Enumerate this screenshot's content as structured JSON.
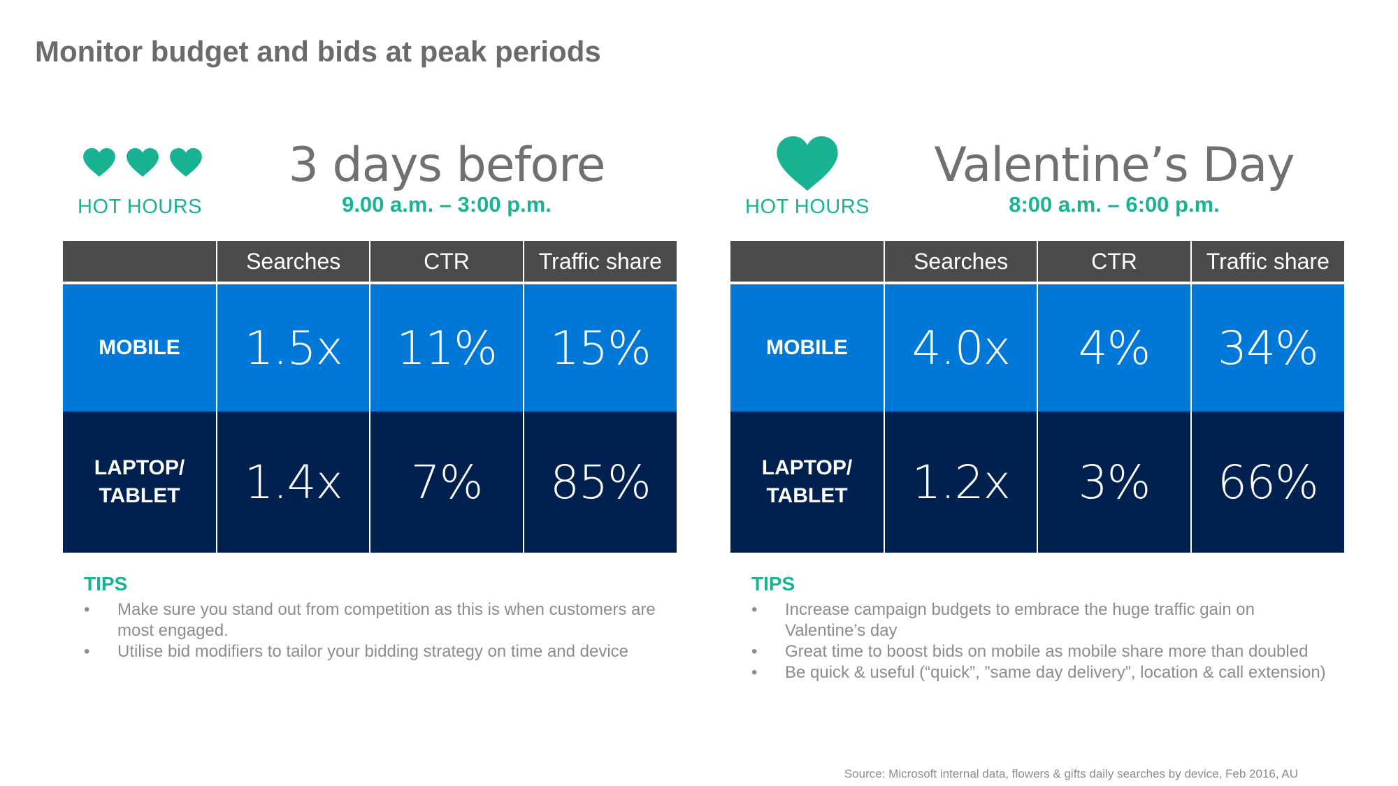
{
  "page": {
    "title": "Monitor budget and bids at peak periods",
    "source": "Source: Microsoft internal data, flowers & gifts daily searches by device, Feb 2016, AU"
  },
  "colors": {
    "heart": "#19b394",
    "accent_text": "#19b394",
    "header_row": "#4b4b4b",
    "mobile_row": "#0078d7",
    "laptop_row": "#002050",
    "title_text": "#6b6b6b"
  },
  "panels": [
    {
      "icon": "three-hearts-icon",
      "hot_hours_label": "HOT HOURS",
      "heading": "3 days before",
      "hours": "9.00 a.m. – 3:00 p.m.",
      "columns": [
        "Searches",
        "CTR",
        "Traffic share"
      ],
      "rows": [
        {
          "label_line1": "MOBILE",
          "label_line2": "",
          "values": [
            "1.5x",
            "11%",
            "15%"
          ]
        },
        {
          "label_line1": "LAPTOP/",
          "label_line2": "TABLET",
          "values": [
            "1.4x",
            "7%",
            "85%"
          ]
        }
      ],
      "tips_title": "TIPS",
      "tips": [
        "Make sure you stand out from competition as this is when customers are most engaged.",
        "Utilise bid modifiers to tailor your bidding strategy on time and device"
      ]
    },
    {
      "icon": "heart-icon",
      "hot_hours_label": "HOT HOURS",
      "heading": "Valentine’s Day",
      "hours": "8:00 a.m. – 6:00 p.m.",
      "columns": [
        "Searches",
        "CTR",
        "Traffic share"
      ],
      "rows": [
        {
          "label_line1": "MOBILE",
          "label_line2": "",
          "values": [
            "4.0x",
            "4%",
            "34%"
          ]
        },
        {
          "label_line1": "LAPTOP/",
          "label_line2": "TABLET",
          "values": [
            "1.2x",
            "3%",
            "66%"
          ]
        }
      ],
      "tips_title": "TIPS",
      "tips": [
        "Increase campaign budgets to embrace the huge traffic gain on Valentine’s day",
        "Great time to boost bids on mobile as mobile share more than doubled",
        "Be quick & useful (“quick”, ”same day delivery”, location & call extension)"
      ]
    }
  ]
}
